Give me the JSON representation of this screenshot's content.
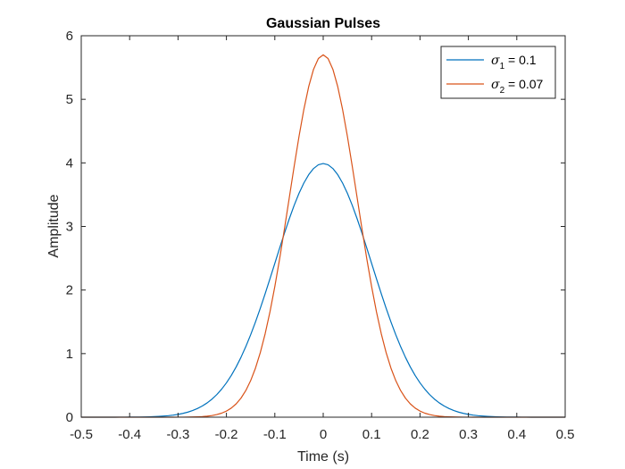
{
  "chart_data": {
    "type": "line",
    "title": "Gaussian Pulses",
    "xlabel": "Time (s)",
    "ylabel": "Amplitude",
    "xlim": [
      -0.5,
      0.5
    ],
    "ylim": [
      0,
      6
    ],
    "x_ticks": [
      -0.5,
      -0.4,
      -0.3,
      -0.2,
      -0.1,
      0,
      0.1,
      0.2,
      0.3,
      0.4,
      0.5
    ],
    "x_tick_labels": [
      "-0.5",
      "-0.4",
      "-0.3",
      "-0.2",
      "-0.1",
      "0",
      "0.1",
      "0.2",
      "0.3",
      "0.4",
      "0.5"
    ],
    "y_ticks": [
      0,
      1,
      2,
      3,
      4,
      5,
      6
    ],
    "y_tick_labels": [
      "0",
      "1",
      "2",
      "3",
      "4",
      "5",
      "6"
    ],
    "grid": false,
    "legend_position": "top-right",
    "x_range": [
      -0.5,
      0.5
    ],
    "sample_count": 101,
    "series": [
      {
        "name": "σ1 = 0.1",
        "symbol": "σ",
        "subscript": "1",
        "suffix": " = 0.1",
        "sigma": 0.1,
        "peak": 3.99,
        "color": "#0072BD"
      },
      {
        "name": "σ2 = 0.07",
        "symbol": "σ",
        "subscript": "2",
        "suffix": " = 0.07",
        "sigma": 0.07,
        "peak": 5.7,
        "color": "#D95319"
      }
    ]
  }
}
